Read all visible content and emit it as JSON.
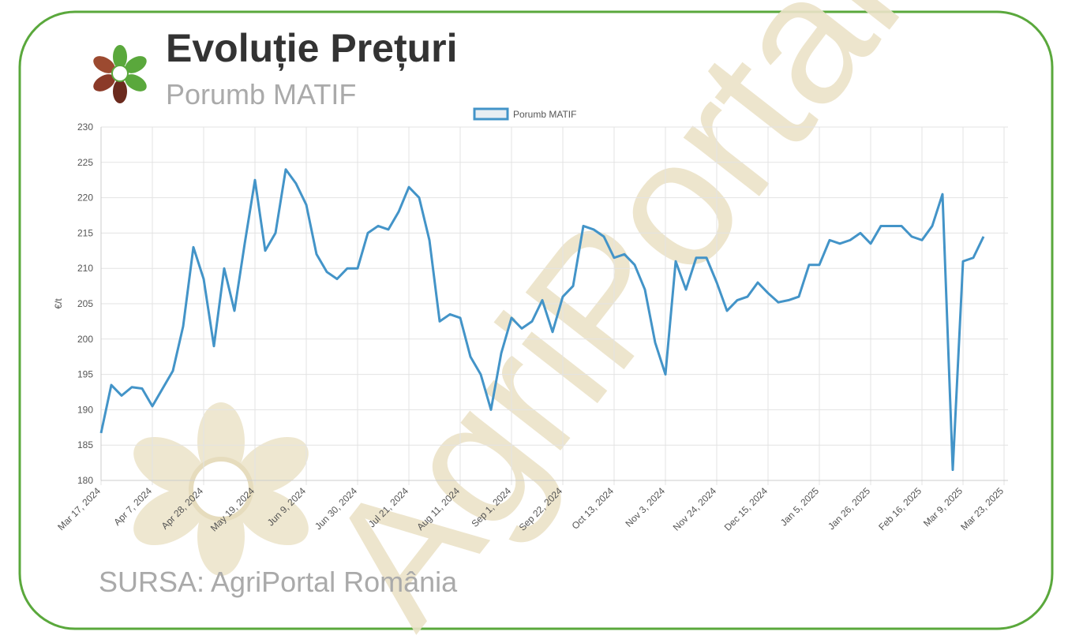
{
  "title": "Evoluție Prețuri",
  "subtitle": "Porumb MATIF",
  "watermark": "AgriPortal",
  "source": "SURSA: AgriPortal România",
  "chart_data": {
    "type": "line",
    "y_label": "€/t",
    "categories": [
      "Mar 17, 2024",
      null,
      null,
      null,
      null,
      "Apr 7, 2024",
      null,
      null,
      null,
      null,
      "Apr 28, 2024",
      null,
      null,
      null,
      null,
      "May 19, 2024",
      null,
      null,
      null,
      null,
      "Jun 9, 2024",
      null,
      null,
      null,
      null,
      "Jun 30, 2024",
      null,
      null,
      null,
      null,
      "Jul 21, 2024",
      null,
      null,
      null,
      null,
      "Aug 11, 2024",
      null,
      null,
      null,
      null,
      "Sep 1, 2024",
      null,
      null,
      null,
      null,
      "Sep 22, 2024",
      null,
      null,
      null,
      null,
      "Oct 13, 2024",
      null,
      null,
      null,
      null,
      "Nov 3, 2024",
      null,
      null,
      null,
      null,
      "Nov 24, 2024",
      null,
      null,
      null,
      null,
      "Dec 15, 2024",
      null,
      null,
      null,
      null,
      "Jan 5, 2025",
      null,
      null,
      null,
      null,
      "Jan 26, 2025",
      null,
      null,
      null,
      null,
      "Feb 16, 2025",
      null,
      null,
      null,
      "Mar 9, 2025",
      null,
      null,
      null,
      "Mar 23, 2025"
    ],
    "series": [
      {
        "name": "Porumb MATIF",
        "color": "#4394c8",
        "values": [
          186.7,
          193.5,
          192,
          193.2,
          193,
          190.5,
          193,
          195.5,
          201.8,
          213,
          208.5,
          199,
          210,
          204,
          213.5,
          222.5,
          212.5,
          215,
          224,
          222,
          219,
          212,
          209.5,
          208.5,
          210,
          210,
          215,
          216,
          215.5,
          218,
          221.5,
          220,
          214,
          202.5,
          203.5,
          203,
          197.5,
          195,
          190,
          198,
          203,
          201.5,
          202.5,
          205.5,
          201,
          206,
          207.5,
          216,
          215.5,
          214.5,
          211.5,
          212,
          210.5,
          207,
          199.5,
          195,
          211,
          207,
          211.5,
          211.5,
          208,
          204,
          205.5,
          206,
          208,
          206.5,
          205.2,
          205.5,
          206,
          210.5,
          210.5,
          214,
          213.5,
          214,
          215,
          213.5,
          216,
          216,
          216,
          214.5,
          214,
          216,
          220.5,
          181.5,
          211,
          211.5,
          214.5,
          null,
          null
        ]
      }
    ],
    "ylim": [
      180,
      230
    ],
    "yticks": [
      180,
      185,
      190,
      195,
      200,
      205,
      210,
      215,
      220,
      225,
      230
    ],
    "grid": true,
    "legend": "top"
  }
}
